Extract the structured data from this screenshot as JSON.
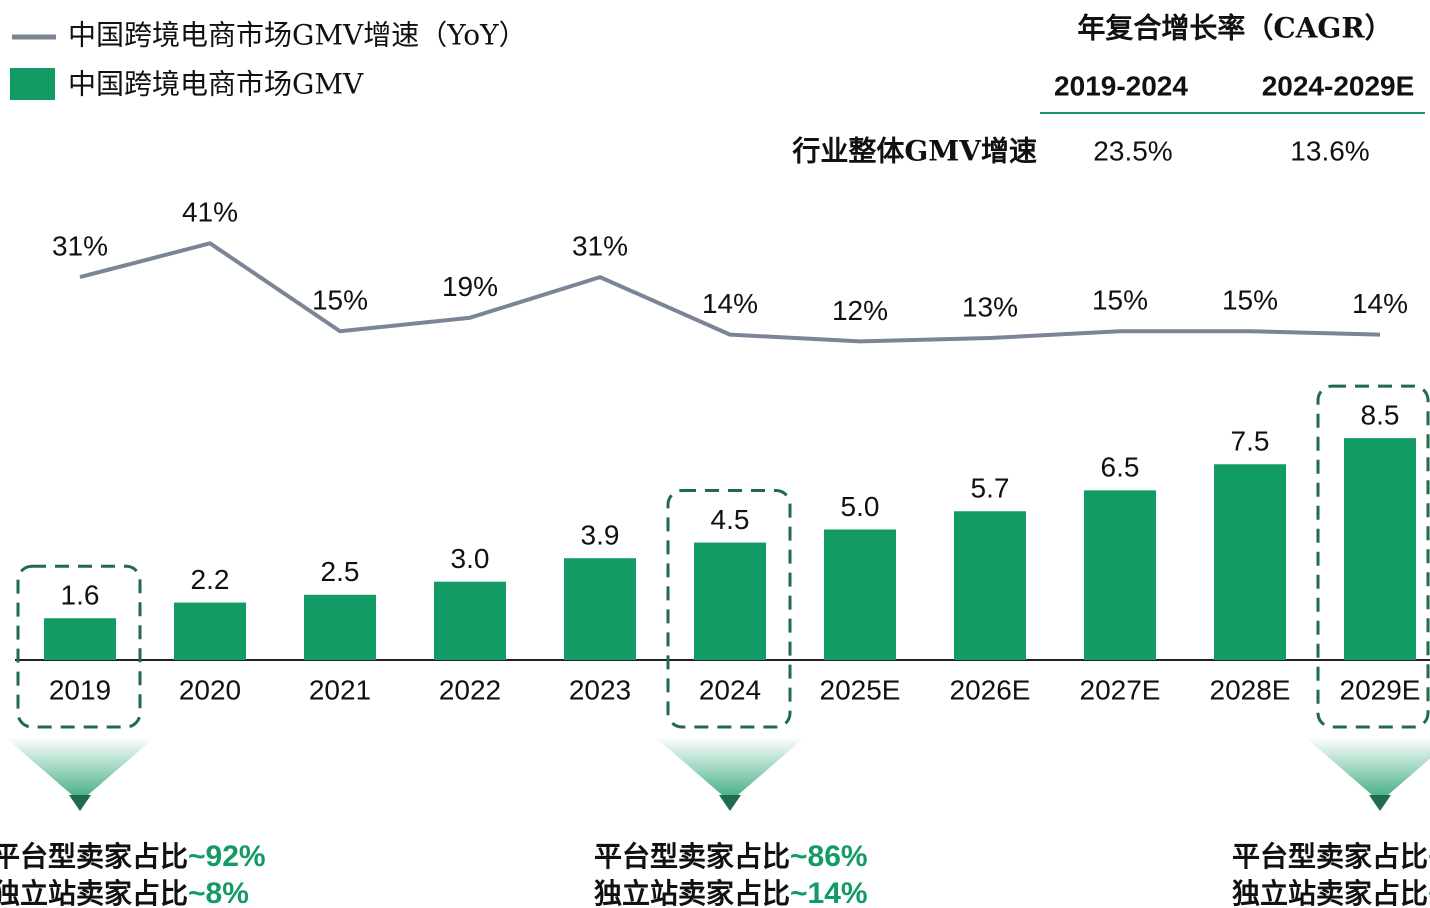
{
  "chart_data": {
    "type": "bar_line",
    "categories": [
      "2019",
      "2020",
      "2021",
      "2022",
      "2023",
      "2024",
      "2025E",
      "2026E",
      "2027E",
      "2028E",
      "2029E"
    ],
    "series": [
      {
        "name": "中国跨境电商市场GMV增速（YoY）",
        "type": "line",
        "axis": "y2",
        "color": "#7b8597",
        "values": [
          31,
          41,
          15,
          19,
          31,
          14,
          12,
          13,
          15,
          15,
          14
        ],
        "value_labels": [
          "31%",
          "41%",
          "15%",
          "19%",
          "31%",
          "14%",
          "12%",
          "13%",
          "15%",
          "15%",
          "14%"
        ]
      },
      {
        "name": "中国跨境电商市场GMV",
        "type": "bar",
        "color": "#139b65",
        "values": [
          1.6,
          2.2,
          2.5,
          3,
          3.9,
          4.5,
          5,
          5.7,
          6.5,
          7.5,
          8.5
        ],
        "value_labels": [
          "1.6",
          "2.2",
          "2.5",
          "3.0",
          "3.9",
          "4.5",
          "5.0",
          "5.7",
          "6.5",
          "7.5",
          "8.5"
        ]
      }
    ],
    "ylim": [
      0,
      10
    ],
    "y2lim": [
      0,
      60
    ],
    "cagr_table": {
      "title": "年复合增长率（CAGR）",
      "columns": [
        "2019-2024",
        "2024-2029E"
      ],
      "row_label": "行业整体GMV增速",
      "values": [
        23.5,
        13.6
      ],
      "value_labels": [
        "23.5%",
        "13.6%"
      ]
    },
    "annotations": [
      {
        "lines": [
          [
            "平台型卖家占比",
            "~92%"
          ],
          [
            "独立站卖家占比",
            "~8%"
          ]
        ]
      },
      {
        "lines": [
          [
            "平台型卖家占比",
            "~86%"
          ],
          [
            "独立站卖家占比",
            "~14%"
          ]
        ]
      },
      {
        "lines": [
          [
            "平台型卖家占比",
            "~"
          ],
          [
            "独立站卖家占比",
            "~"
          ]
        ]
      }
    ]
  }
}
